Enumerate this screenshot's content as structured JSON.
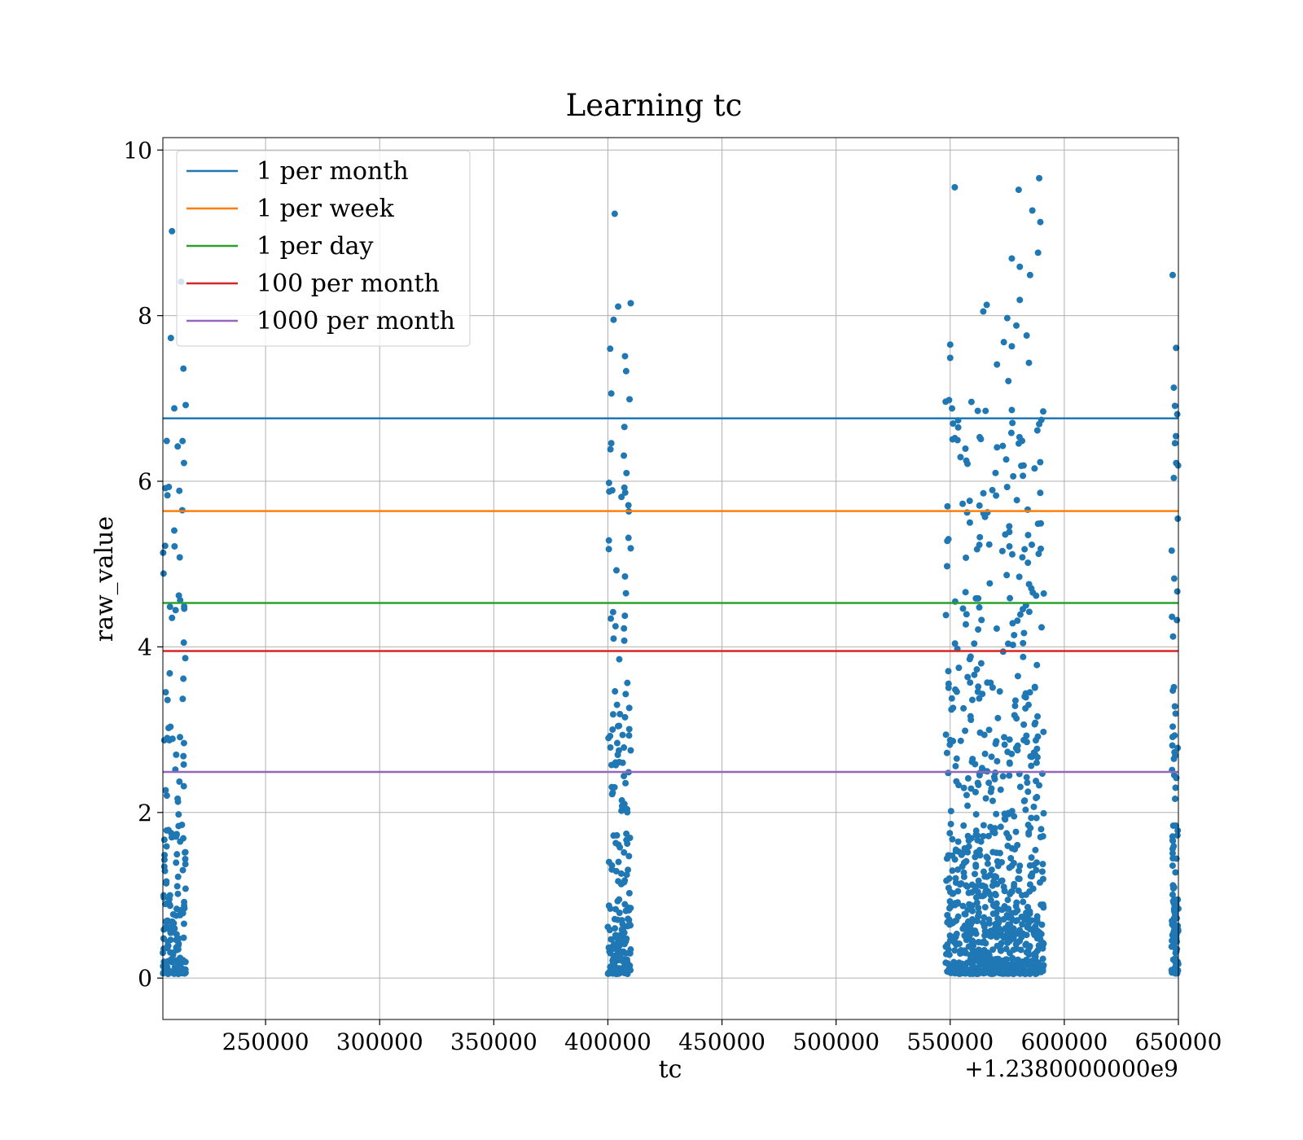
{
  "chart_data": {
    "type": "scatter",
    "title": "Learning tc",
    "xlabel": "tc",
    "ylabel": "raw_value",
    "x_offset_label": "+1.2380000000e9",
    "xlim": [
      205000,
      650000
    ],
    "ylim": [
      -0.5,
      10.15
    ],
    "x_ticks": [
      250000,
      300000,
      350000,
      400000,
      450000,
      500000,
      550000,
      600000,
      650000
    ],
    "x_tick_labels": [
      "250000",
      "300000",
      "350000",
      "400000",
      "450000",
      "500000",
      "550000",
      "600000",
      "650000"
    ],
    "y_ticks": [
      0,
      2,
      4,
      6,
      8,
      10
    ],
    "y_tick_labels": [
      "0",
      "2",
      "4",
      "6",
      "8",
      "10"
    ],
    "grid": true,
    "legend_position": "top-left",
    "point_color": "#1f77b4",
    "lines": [
      {
        "name": "1 per month",
        "y": 6.76,
        "color": "#1f77b4"
      },
      {
        "name": "1 per week",
        "y": 5.64,
        "color": "#ff7f0e"
      },
      {
        "name": "1 per day",
        "y": 4.53,
        "color": "#2ca02c"
      },
      {
        "name": "100 per month",
        "y": 3.95,
        "color": "#d62728"
      },
      {
        "name": "1000 per month",
        "y": 2.49,
        "color": "#9467bd"
      }
    ],
    "clusters": [
      {
        "x_range": [
          205000,
          215000
        ],
        "count": 180,
        "outliers": [
          [
            209000,
            9.02
          ],
          [
            213000,
            8.41
          ],
          [
            208500,
            7.73
          ],
          [
            214000,
            7.36
          ],
          [
            210000,
            6.88
          ],
          [
            215000,
            6.92
          ],
          [
            211500,
            6.42
          ],
          [
            207000,
            5.83
          ],
          [
            213500,
            5.65
          ],
          [
            206000,
            5.22
          ],
          [
            212000,
            4.62
          ],
          [
            209000,
            4.35
          ],
          [
            208000,
            3.68
          ],
          [
            207500,
            3.02
          ],
          [
            212500,
            2.91
          ],
          [
            214000,
            2.68
          ]
        ]
      },
      {
        "x_range": [
          400000,
          410000
        ],
        "count": 200,
        "outliers": [
          [
            403000,
            9.23
          ],
          [
            410000,
            8.15
          ],
          [
            404500,
            8.11
          ],
          [
            402500,
            7.95
          ],
          [
            401000,
            7.6
          ],
          [
            407500,
            7.51
          ],
          [
            408000,
            7.33
          ],
          [
            401500,
            7.06
          ],
          [
            409500,
            6.99
          ],
          [
            401500,
            6.46
          ],
          [
            407000,
            6.31
          ],
          [
            400500,
            5.98
          ],
          [
            409000,
            5.71
          ],
          [
            410000,
            5.19
          ],
          [
            407500,
            4.85
          ],
          [
            402500,
            4.1
          ],
          [
            405000,
            3.85
          ],
          [
            404000,
            3.3
          ],
          [
            407500,
            3.15
          ],
          [
            406500,
            2.6
          ],
          [
            410000,
            2.75
          ]
        ]
      },
      {
        "x_range": [
          548000,
          591000
        ],
        "count": 900,
        "outliers": [
          [
            552000,
            9.55
          ],
          [
            589000,
            9.66
          ],
          [
            580000,
            9.52
          ],
          [
            586000,
            9.27
          ],
          [
            589500,
            9.13
          ],
          [
            588500,
            8.76
          ],
          [
            577000,
            8.69
          ],
          [
            580500,
            8.59
          ],
          [
            585000,
            8.49
          ],
          [
            566000,
            8.13
          ],
          [
            580500,
            8.19
          ],
          [
            564500,
            8.05
          ],
          [
            575000,
            7.97
          ],
          [
            579000,
            7.88
          ],
          [
            583500,
            7.76
          ],
          [
            550000,
            7.65
          ],
          [
            573500,
            7.68
          ],
          [
            550000,
            7.49
          ],
          [
            577000,
            7.63
          ],
          [
            584500,
            7.43
          ],
          [
            570500,
            7.41
          ],
          [
            575500,
            7.21
          ],
          [
            549500,
            6.98
          ],
          [
            577000,
            6.86
          ],
          [
            589000,
            6.69
          ],
          [
            553500,
            6.65
          ],
          [
            565500,
            6.85
          ]
        ]
      },
      {
        "x_range": [
          647000,
          650000
        ],
        "count": 120,
        "outliers": [
          [
            647500,
            8.49
          ],
          [
            649000,
            7.61
          ],
          [
            648000,
            7.13
          ],
          [
            648500,
            6.91
          ],
          [
            649500,
            6.81
          ],
          [
            648500,
            6.46
          ],
          [
            648000,
            6.04
          ]
        ]
      }
    ]
  }
}
